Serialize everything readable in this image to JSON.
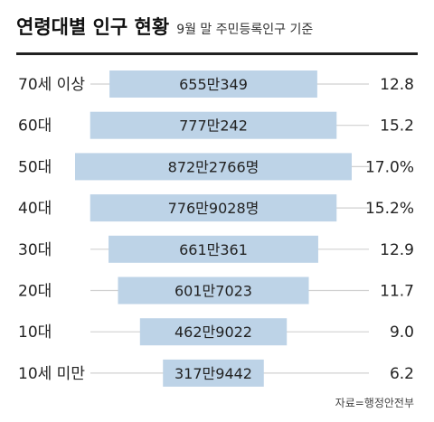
{
  "title": "연령대별 인구 현황",
  "subtitle": "9월 말 주민등록인구 기준",
  "source": "자료=행정안전부",
  "bar_color": "#bdd3e7",
  "line_color": "#d0d0d0",
  "chart_data": {
    "type": "bar",
    "orientation": "horizontal",
    "title": "연령대별 인구 현황",
    "subtitle": "9월 말 주민등록인구 기준",
    "categories": [
      "70세 이상",
      "60대",
      "50대",
      "40대",
      "30대",
      "20대",
      "10대",
      "10세 미만"
    ],
    "values": [
      6550349,
      7770242,
      8722766,
      7769028,
      6610361,
      6017023,
      4629022,
      3179442
    ],
    "value_labels": [
      "655만349",
      "777만242",
      "872만2766명",
      "776만9028명",
      "661만361",
      "601만7023",
      "462만9022",
      "317만9442"
    ],
    "percent_values": [
      12.8,
      15.2,
      17.0,
      15.2,
      12.9,
      11.7,
      9.0,
      6.2
    ],
    "percent_labels": [
      "12.8",
      "15.2",
      "17.0%",
      "15.2%",
      "12.9",
      "11.7",
      "9.0",
      "6.2"
    ],
    "grid": false
  }
}
